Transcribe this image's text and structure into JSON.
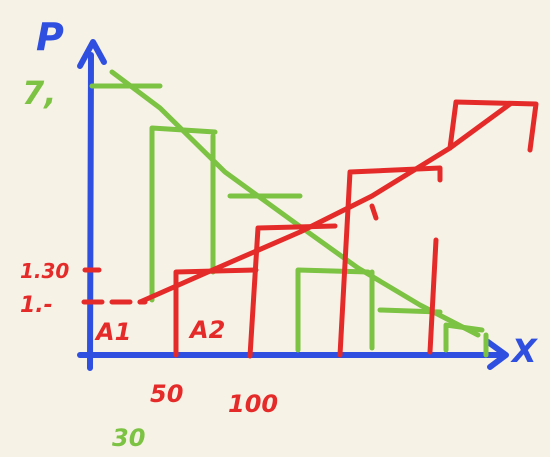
{
  "axes": {
    "y_label": "P",
    "x_label": "X"
  },
  "labels": {
    "green_top_price": "7,",
    "red_price_a": "1.30",
    "red_price_b": "1.-",
    "area_1": "A1",
    "area_2": "A2",
    "qty_50": "50",
    "qty_100": "100",
    "green_qty": "30"
  },
  "colors": {
    "background": "#f7f2e6",
    "axis": "#2f4fe0",
    "supply": "#e52a2a",
    "demand": "#7cc243"
  }
}
